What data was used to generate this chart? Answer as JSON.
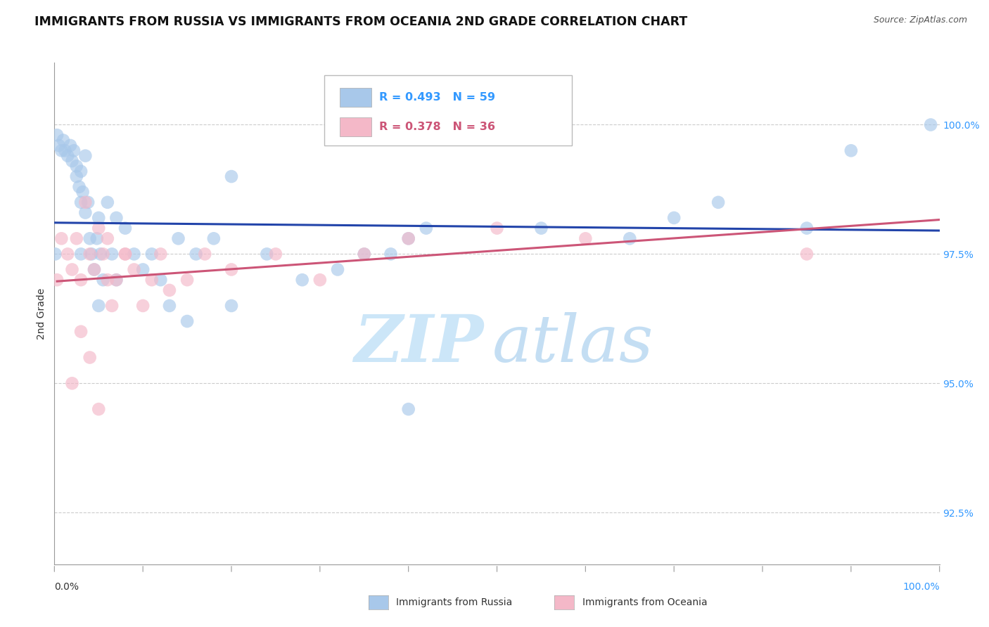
{
  "title": "IMMIGRANTS FROM RUSSIA VS IMMIGRANTS FROM OCEANIA 2ND GRADE CORRELATION CHART",
  "source_text": "Source: ZipAtlas.com",
  "ylabel": "2nd Grade",
  "legend_russia": "Immigrants from Russia",
  "legend_oceania": "Immigrants from Oceania",
  "R_russia": 0.493,
  "N_russia": 59,
  "R_oceania": 0.378,
  "N_oceania": 36,
  "color_russia": "#a8c8ea",
  "color_oceania": "#f4b8c8",
  "line_color_russia": "#2244aa",
  "line_color_oceania": "#cc5577",
  "background_color": "#ffffff",
  "watermark_color": "#d5ecf8",
  "xlim": [
    0.0,
    100.0
  ],
  "ylim": [
    91.5,
    101.2
  ],
  "yticks": [
    92.5,
    95.0,
    97.5,
    100.0
  ],
  "ytick_labels": [
    "92.5%",
    "95.0%",
    "97.5%",
    "100.0%"
  ],
  "grid_color": "#cccccc",
  "russia_x": [
    0.1,
    0.3,
    0.5,
    0.8,
    1.0,
    1.2,
    1.5,
    1.8,
    2.0,
    2.2,
    2.5,
    2.5,
    2.8,
    3.0,
    3.0,
    3.2,
    3.5,
    3.5,
    3.8,
    4.0,
    4.2,
    4.5,
    4.8,
    5.0,
    5.2,
    5.5,
    6.0,
    6.5,
    7.0,
    8.0,
    9.0,
    10.0,
    11.0,
    12.0,
    13.0,
    14.0,
    15.0,
    16.0,
    18.0,
    20.0,
    24.0,
    28.0,
    32.0,
    38.0,
    40.0,
    42.0,
    55.0,
    65.0,
    70.0,
    75.0,
    85.0,
    90.0,
    99.0,
    35.0,
    5.0,
    7.0,
    3.0,
    20.0,
    40.0
  ],
  "russia_y": [
    97.5,
    99.8,
    99.6,
    99.5,
    99.7,
    99.5,
    99.4,
    99.6,
    99.3,
    99.5,
    99.2,
    99.0,
    98.8,
    99.1,
    98.5,
    98.7,
    98.3,
    99.4,
    98.5,
    97.8,
    97.5,
    97.2,
    97.8,
    98.2,
    97.5,
    97.0,
    98.5,
    97.5,
    98.2,
    98.0,
    97.5,
    97.2,
    97.5,
    97.0,
    96.5,
    97.8,
    96.2,
    97.5,
    97.8,
    96.5,
    97.5,
    97.0,
    97.2,
    97.5,
    97.8,
    98.0,
    98.0,
    97.8,
    98.2,
    98.5,
    98.0,
    99.5,
    100.0,
    97.5,
    96.5,
    97.0,
    97.5,
    99.0,
    94.5
  ],
  "oceania_x": [
    0.3,
    0.8,
    1.5,
    2.0,
    2.5,
    3.0,
    3.5,
    4.0,
    4.5,
    5.0,
    5.5,
    6.0,
    6.5,
    7.0,
    8.0,
    9.0,
    10.0,
    11.0,
    12.0,
    13.0,
    15.0,
    17.0,
    20.0,
    25.0,
    30.0,
    35.0,
    50.0,
    60.0,
    85.0,
    40.0,
    6.0,
    8.0,
    3.0,
    4.0,
    2.0,
    5.0
  ],
  "oceania_y": [
    97.0,
    97.8,
    97.5,
    97.2,
    97.8,
    97.0,
    98.5,
    97.5,
    97.2,
    98.0,
    97.5,
    97.8,
    96.5,
    97.0,
    97.5,
    97.2,
    96.5,
    97.0,
    97.5,
    96.8,
    97.0,
    97.5,
    97.2,
    97.5,
    97.0,
    97.5,
    98.0,
    97.8,
    97.5,
    97.8,
    97.0,
    97.5,
    96.0,
    95.5,
    95.0,
    94.5
  ],
  "title_fontsize": 12.5,
  "tick_fontsize": 10,
  "label_fontsize": 10
}
